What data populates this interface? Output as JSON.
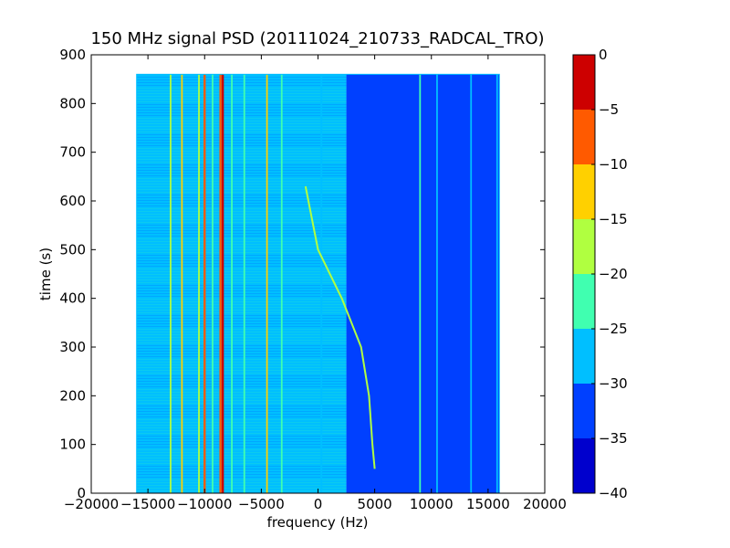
{
  "chart_data": {
    "type": "heatmap",
    "title": "150 MHz signal PSD (20111024_210733_RADCAL_TRO)",
    "xlabel": "frequency (Hz)",
    "ylabel": "time (s)",
    "xlim": [
      -20000,
      20000
    ],
    "ylim": [
      0,
      900
    ],
    "x_ticks": [
      -20000,
      -15000,
      -10000,
      -5000,
      0,
      5000,
      10000,
      15000,
      20000
    ],
    "x_tick_labels": [
      "−20000",
      "−15000",
      "−10000",
      "−5000",
      "0",
      "5000",
      "10000",
      "15000",
      "20000"
    ],
    "y_ticks": [
      0,
      100,
      200,
      300,
      400,
      500,
      600,
      700,
      800,
      900
    ],
    "y_tick_labels": [
      "0",
      "100",
      "200",
      "300",
      "400",
      "500",
      "600",
      "700",
      "800",
      "900"
    ],
    "data_extent": {
      "x": [
        -16000,
        16000
      ],
      "y": [
        0,
        860
      ]
    },
    "background_level": [
      {
        "x_range": [
          -16000,
          2500
        ],
        "level": -30
      },
      {
        "x_range": [
          2500,
          16000
        ],
        "level": -35
      }
    ],
    "tones": [
      {
        "x": -13000,
        "level": -20
      },
      {
        "x": -12000,
        "level": -15
      },
      {
        "x": -10500,
        "level": -20
      },
      {
        "x": -10000,
        "level": -10
      },
      {
        "x": -9300,
        "level": -25
      },
      {
        "x": -8600,
        "level": -10
      },
      {
        "x": -8400,
        "level": 0
      },
      {
        "x": -7600,
        "level": -25
      },
      {
        "x": -6500,
        "level": -25
      },
      {
        "x": -4500,
        "level": -15
      },
      {
        "x": -3200,
        "level": -25
      },
      {
        "x": 300,
        "level": -30
      },
      {
        "x": 9000,
        "level": -25
      },
      {
        "x": 10500,
        "level": -30
      },
      {
        "x": 13500,
        "level": -30
      },
      {
        "x": 15800,
        "level": -30
      }
    ],
    "drifting_signal": {
      "level": -20,
      "points": [
        {
          "t": 630,
          "f": -1100
        },
        {
          "t": 500,
          "f": 0
        },
        {
          "t": 400,
          "f": 2100
        },
        {
          "t": 300,
          "f": 3800
        },
        {
          "t": 200,
          "f": 4500
        },
        {
          "t": 100,
          "f": 4800
        },
        {
          "t": 50,
          "f": 5000
        }
      ]
    },
    "colorbar": {
      "levels": [
        -40,
        -35,
        -30,
        -25,
        -20,
        -15,
        -10,
        -5,
        0
      ],
      "tick_labels": [
        "−40",
        "−35",
        "−30",
        "−25",
        "−20",
        "−15",
        "−10",
        "−5",
        "0"
      ],
      "colors": [
        "#0000cd",
        "#0040ff",
        "#00bfff",
        "#40ffb0",
        "#b0ff40",
        "#ffd000",
        "#ff5a00",
        "#cd0000"
      ]
    }
  }
}
